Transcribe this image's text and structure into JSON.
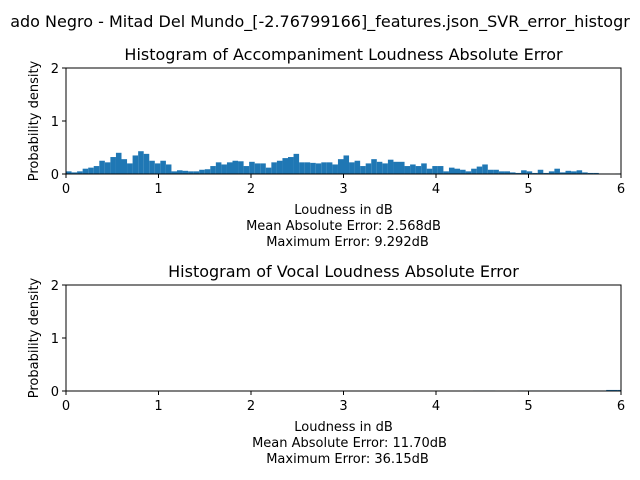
{
  "suptitle": "ado Negro - Mitad Del Mundo_[-2.76799166]_features.json_SVR_error_histogr",
  "colors": {
    "bar": "#1f77b4",
    "axes": "#000000",
    "background": "#ffffff"
  },
  "chart_data": [
    {
      "type": "bar",
      "title": "Histogram of Accompaniment Loudness Absolute Error",
      "xlabel": "Loudness in dB",
      "ylabel": "Probability density",
      "xlim": [
        0,
        6
      ],
      "ylim": [
        0,
        2
      ],
      "xticks": [
        "0",
        "1",
        "2",
        "3",
        "4",
        "5",
        "6"
      ],
      "yticks": [
        "0",
        "1",
        "2"
      ],
      "bin_width": 0.06,
      "x": [
        0.0,
        0.06,
        0.12,
        0.18,
        0.24,
        0.3,
        0.36,
        0.42,
        0.48,
        0.54,
        0.6,
        0.66,
        0.72,
        0.78,
        0.84,
        0.9,
        0.96,
        1.02,
        1.08,
        1.14,
        1.2,
        1.26,
        1.32,
        1.38,
        1.44,
        1.5,
        1.56,
        1.62,
        1.68,
        1.74,
        1.8,
        1.86,
        1.92,
        1.98,
        2.04,
        2.1,
        2.16,
        2.22,
        2.28,
        2.34,
        2.4,
        2.46,
        2.52,
        2.58,
        2.64,
        2.7,
        2.76,
        2.82,
        2.88,
        2.94,
        3.0,
        3.06,
        3.12,
        3.18,
        3.24,
        3.3,
        3.36,
        3.42,
        3.48,
        3.54,
        3.6,
        3.66,
        3.72,
        3.78,
        3.84,
        3.9,
        3.96,
        4.02,
        4.08,
        4.14,
        4.2,
        4.26,
        4.32,
        4.38,
        4.44,
        4.5,
        4.56,
        4.62,
        4.68,
        4.74,
        4.8,
        4.86,
        4.92,
        4.98,
        5.04,
        5.1,
        5.16,
        5.22,
        5.28,
        5.34,
        5.4,
        5.46,
        5.52,
        5.58,
        5.64,
        5.7,
        5.76,
        5.82,
        5.88,
        5.94
      ],
      "values": [
        0.05,
        0.03,
        0.05,
        0.1,
        0.12,
        0.15,
        0.25,
        0.22,
        0.32,
        0.4,
        0.28,
        0.2,
        0.35,
        0.43,
        0.38,
        0.25,
        0.2,
        0.25,
        0.18,
        0.05,
        0.07,
        0.06,
        0.05,
        0.05,
        0.08,
        0.09,
        0.15,
        0.22,
        0.18,
        0.22,
        0.25,
        0.24,
        0.15,
        0.23,
        0.2,
        0.2,
        0.12,
        0.22,
        0.25,
        0.3,
        0.32,
        0.38,
        0.22,
        0.22,
        0.21,
        0.2,
        0.22,
        0.22,
        0.18,
        0.28,
        0.35,
        0.22,
        0.25,
        0.15,
        0.2,
        0.28,
        0.23,
        0.2,
        0.27,
        0.23,
        0.23,
        0.15,
        0.18,
        0.15,
        0.2,
        0.1,
        0.15,
        0.15,
        0.05,
        0.12,
        0.1,
        0.08,
        0.05,
        0.1,
        0.14,
        0.18,
        0.08,
        0.08,
        0.05,
        0.05,
        0.03,
        0.02,
        0.07,
        0.05,
        0.02,
        0.08,
        0.02,
        0.05,
        0.1,
        0.03,
        0.06,
        0.05,
        0.07,
        0.03,
        0.02,
        0.02,
        0.01,
        0.01,
        0.0,
        0.01
      ],
      "annotations": [
        "Mean Absolute Error: 2.568dB",
        "Maximum Error: 9.292dB"
      ]
    },
    {
      "type": "bar",
      "title": "Histogram of Vocal Loudness Absolute Error",
      "xlabel": "Loudness in dB",
      "ylabel": "Probability density",
      "xlim": [
        0,
        6
      ],
      "ylim": [
        0,
        2
      ],
      "xticks": [
        "0",
        "1",
        "2",
        "3",
        "4",
        "5",
        "6"
      ],
      "yticks": [
        "0",
        "1",
        "2"
      ],
      "bin_width": 0.12,
      "x": [
        4.4,
        4.52,
        4.88,
        5.0,
        5.12,
        5.24,
        5.36,
        5.48,
        5.6,
        5.72,
        5.84,
        5.96
      ],
      "values": [
        0.01,
        0.01,
        0.01,
        0.01,
        0.01,
        0.01,
        0.01,
        0.01,
        0.01,
        0.01,
        0.02,
        0.02
      ],
      "annotations": [
        "Mean Absolute Error: 11.70dB",
        "Maximum Error: 36.15dB"
      ]
    }
  ]
}
